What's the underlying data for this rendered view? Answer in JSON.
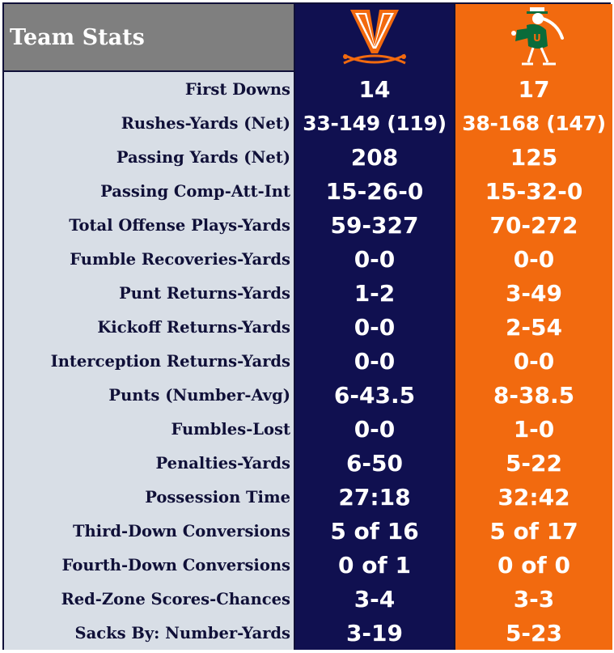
{
  "title": "Team Stats",
  "teams": [
    {
      "logo": "virginia-v-sabres-logo",
      "color": "#101050",
      "accent": "#f26a0f"
    },
    {
      "logo": "miami-ibis-mascot-logo",
      "color": "#f26a0f",
      "accent": "#0a6b3a"
    }
  ],
  "rows": [
    {
      "label": "First Downs",
      "uva": "14",
      "um": "17"
    },
    {
      "label": "Rushes-Yards (Net)",
      "uva": "33-149 (119)",
      "um": "38-168 (147)"
    },
    {
      "label": "Passing Yards (Net)",
      "uva": "208",
      "um": "125"
    },
    {
      "label": "Passing Comp-Att-Int",
      "uva": "15-26-0",
      "um": "15-32-0"
    },
    {
      "label": "Total Offense Plays-Yards",
      "uva": "59-327",
      "um": "70-272"
    },
    {
      "label": "Fumble Recoveries-Yards",
      "uva": "0-0",
      "um": "0-0"
    },
    {
      "label": "Punt Returns-Yards",
      "uva": "1-2",
      "um": "3-49"
    },
    {
      "label": "Kickoff Returns-Yards",
      "uva": "0-0",
      "um": "2-54"
    },
    {
      "label": "Interception Returns-Yards",
      "uva": "0-0",
      "um": "0-0"
    },
    {
      "label": "Punts (Number-Avg)",
      "uva": "6-43.5",
      "um": "8-38.5"
    },
    {
      "label": "Fumbles-Lost",
      "uva": "0-0",
      "um": "1-0"
    },
    {
      "label": "Penalties-Yards",
      "uva": "6-50",
      "um": "5-22"
    },
    {
      "label": "Possession Time",
      "uva": "27:18",
      "um": "32:42"
    },
    {
      "label": "Third-Down Conversions",
      "uva": "5 of 16",
      "um": "5 of 17"
    },
    {
      "label": "Fourth-Down Conversions",
      "uva": "0 of 1",
      "um": "0 of 0"
    },
    {
      "label": "Red-Zone Scores-Chances",
      "uva": "3-4",
      "um": "3-3"
    },
    {
      "label": "Sacks By: Number-Yards",
      "uva": "3-19",
      "um": "5-23"
    }
  ]
}
